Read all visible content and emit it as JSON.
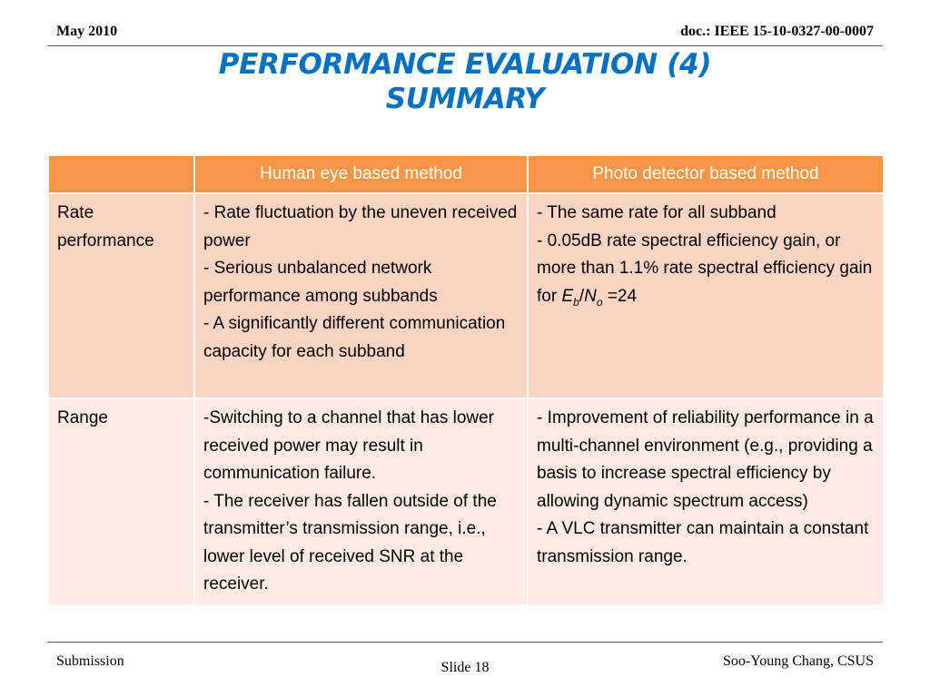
{
  "header": {
    "date": "May 2010",
    "doc": "doc.: IEEE 15-10-0327-00-0007"
  },
  "title": {
    "line1": "PERFORMANCE EVALUATION (4)",
    "line2": "SUMMARY"
  },
  "table": {
    "columns": [
      "",
      "Human eye based method",
      "Photo detector based method"
    ],
    "rows": [
      {
        "label_lines": [
          "Rate",
          "performance"
        ],
        "human_eye": [
          "- Rate fluctuation by the uneven received power",
          "- Serious unbalanced network performance among subbands",
          "- A significantly different communication capacity for each subband"
        ],
        "photo_detector": [
          "- The same rate for all subband",
          "- 0.05dB rate spectral efficiency gain, or more than 1.1% rate spectral efficiency gain for"
        ],
        "photo_detector_formula": {
          "eb": "E",
          "eb_sub": "b",
          "slash": "/",
          "no": "N",
          "no_sub": "o",
          "value": "=24"
        }
      },
      {
        "label_lines": [
          "Range"
        ],
        "human_eye": [
          "-Switching to a channel that has lower received power may result in communication failure.",
          "- The receiver has fallen outside of the transmitter’s transmission range, i.e., lower level of received SNR at the receiver."
        ],
        "photo_detector": [
          "-  Improvement of reliability performance in a multi-channel environment (e.g., providing a basis to increase spectral efficiency by allowing dynamic spectrum access)",
          "- A VLC transmitter can maintain a constant transmission range."
        ]
      }
    ]
  },
  "footer": {
    "left": "Submission",
    "center": "Slide 18",
    "right": "Soo-Young Chang, CSUS"
  },
  "colors": {
    "title": "#0070c0",
    "header_row": "#f79646",
    "row_dark": "#fbd4c3",
    "row_light": "#fdeae3"
  }
}
